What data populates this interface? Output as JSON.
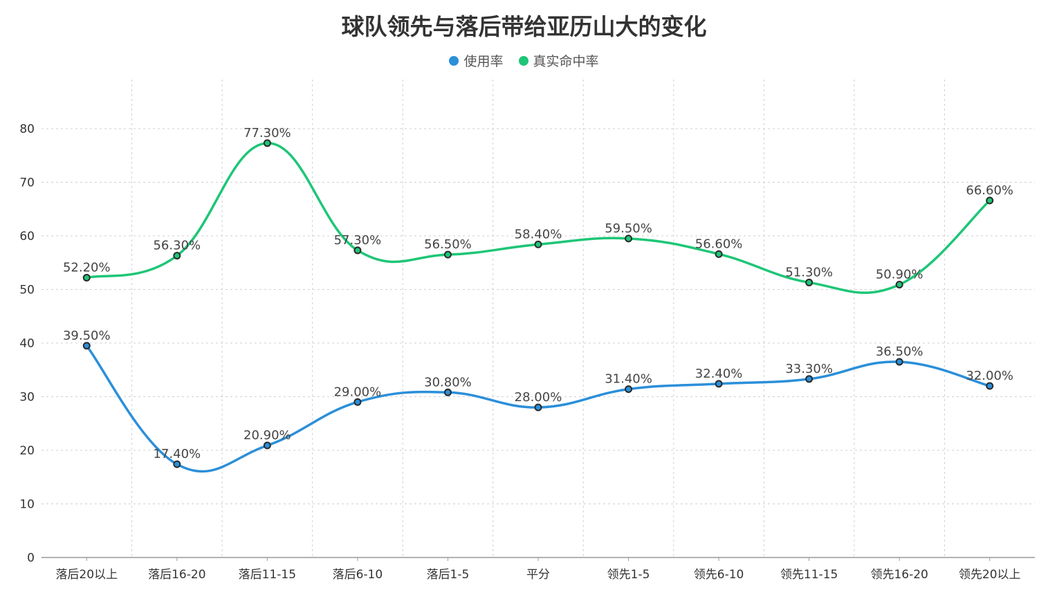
{
  "chart_data": {
    "type": "line",
    "title": "球队领先与落后带给亚历山大的变化",
    "xlabel": "",
    "ylabel": "",
    "categories": [
      "落后20以上",
      "落后16-20",
      "落后11-15",
      "落后6-10",
      "落后1-5",
      "平分",
      "领先1-5",
      "领先6-10",
      "领先11-15",
      "领先16-20",
      "领先20以上"
    ],
    "series": [
      {
        "name": "使用率",
        "color": "#2b8fd9",
        "values": [
          39.5,
          17.4,
          20.9,
          29.0,
          30.8,
          28.0,
          31.4,
          32.4,
          33.3,
          36.5,
          32.0
        ],
        "labels": [
          "39.50%",
          "17.40%",
          "20.90%",
          "29.00%",
          "30.80%",
          "28.00%",
          "31.40%",
          "32.40%",
          "33.30%",
          "36.50%",
          "32.00%"
        ]
      },
      {
        "name": "真实命中率",
        "color": "#1ec677",
        "values": [
          52.2,
          56.3,
          77.3,
          57.3,
          56.5,
          58.4,
          59.5,
          56.6,
          51.3,
          50.9,
          66.6
        ],
        "labels": [
          "52.20%",
          "56.30%",
          "77.30%",
          "57.30%",
          "56.50%",
          "58.40%",
          "59.50%",
          "56.60%",
          "51.30%",
          "50.90%",
          "66.60%"
        ]
      }
    ],
    "yticks": [
      "0",
      "10",
      "20",
      "30",
      "40",
      "50",
      "60",
      "70",
      "80"
    ],
    "ylim": [
      0,
      88
    ],
    "grid": true,
    "smooth": true,
    "legend_position": "top-center"
  }
}
